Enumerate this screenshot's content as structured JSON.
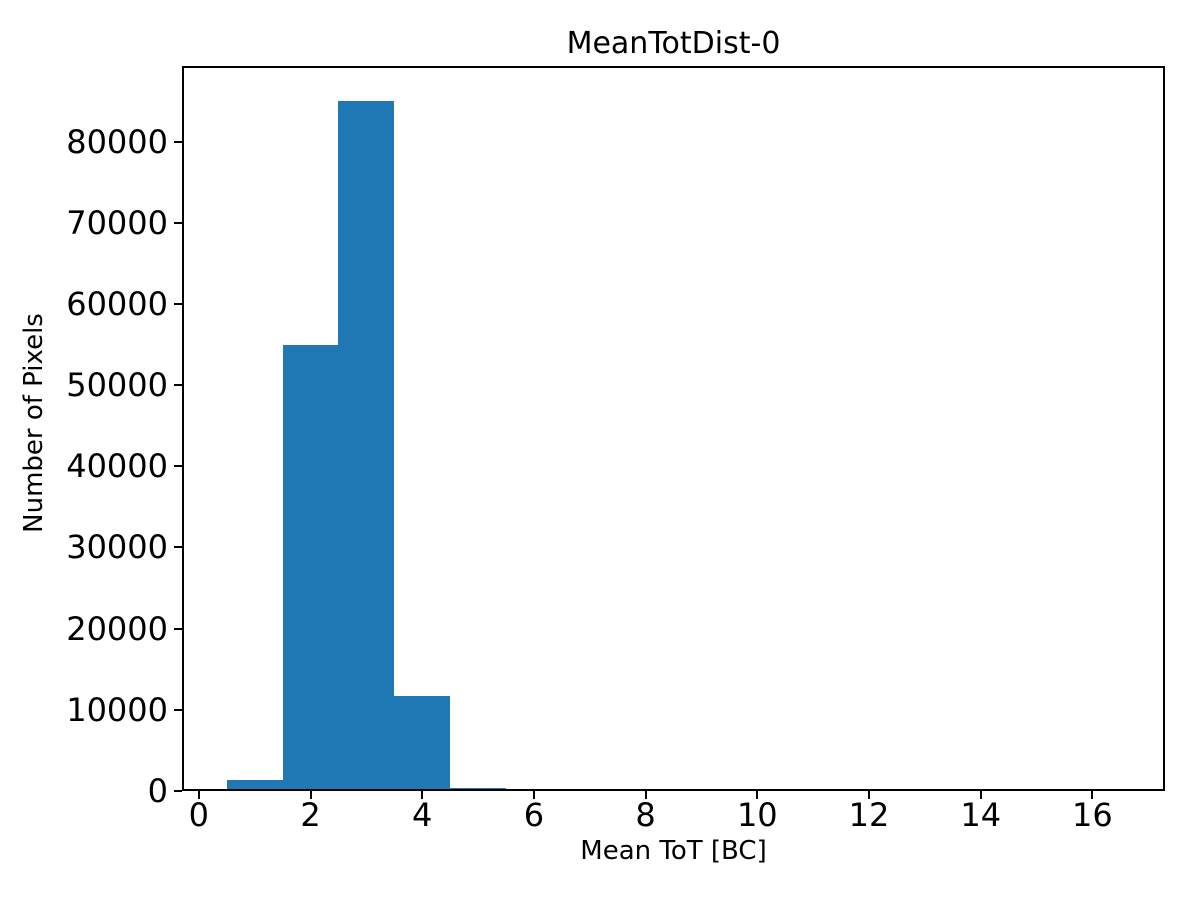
{
  "figure": {
    "background": "#ffffff"
  },
  "chart_data": {
    "type": "bar",
    "subtype": "histogram",
    "title": "MeanTotDist-0",
    "xlabel": "Mean ToT [BC]",
    "ylabel": "Number of Pixels",
    "bin_edges": [
      0.5,
      1.5,
      2.5,
      3.5,
      4.5,
      5.5
    ],
    "values": [
      1400,
      55000,
      85000,
      11700,
      400
    ],
    "xlim": [
      -0.3,
      17.3
    ],
    "ylim": [
      0,
      89300
    ],
    "xticks": [
      0,
      2,
      4,
      6,
      8,
      10,
      12,
      14,
      16
    ],
    "yticks": [
      0,
      10000,
      20000,
      30000,
      40000,
      50000,
      60000,
      70000,
      80000
    ],
    "bar_color": "#1f77b4",
    "axis_color": "#000000",
    "grid": false,
    "legend": null
  }
}
